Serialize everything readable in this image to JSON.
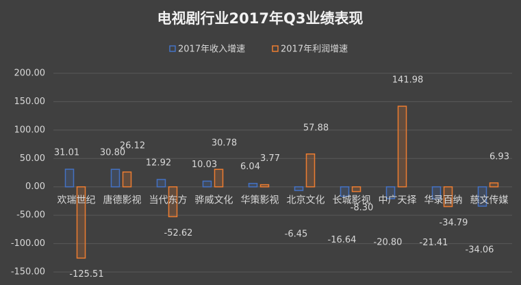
{
  "chart_data": {
    "type": "bar",
    "title": "电视剧行业2017年Q3业绩表现",
    "categories": [
      "欢瑞世纪",
      "唐德影视",
      "当代东方",
      "骅威文化",
      "华策影视",
      "北京文化",
      "长城影视",
      "中广天择",
      "华录百纳",
      "慈文传媒"
    ],
    "series": [
      {
        "name": "2017年收入增速",
        "color": "#4472c4",
        "values": [
          31.01,
          30.8,
          12.92,
          10.03,
          6.04,
          -6.45,
          -16.64,
          -20.8,
          -21.41,
          -34.06
        ],
        "value_labels": [
          "31.01",
          "30.80",
          "12.92",
          "10.03",
          "6.04",
          "-6.45",
          "-16.64",
          "-20.80",
          "-21.41",
          "-34.06"
        ]
      },
      {
        "name": "2017年利润增速",
        "color": "#ed7d31",
        "values": [
          -125.51,
          26.12,
          -52.62,
          30.78,
          3.77,
          57.88,
          -8.3,
          141.98,
          -34.79,
          6.93
        ],
        "value_labels": [
          "-125.51",
          "26.12",
          "-52.62",
          "30.78",
          "3.77",
          "57.88",
          "-8.30",
          "141.98",
          "-34.79",
          "6.93"
        ]
      }
    ],
    "ylim": [
      -150,
      200
    ],
    "yticks": [
      {
        "value": -150,
        "label": "-150.00"
      },
      {
        "value": -100,
        "label": "-100.00"
      },
      {
        "value": -50,
        "label": "-50.00"
      },
      {
        "value": 0,
        "label": "0.00"
      },
      {
        "value": 50,
        "label": "50.00"
      },
      {
        "value": 100,
        "label": "100.00"
      },
      {
        "value": 150,
        "label": "150.00"
      },
      {
        "value": 200,
        "label": "200.00"
      }
    ],
    "grid": true
  }
}
